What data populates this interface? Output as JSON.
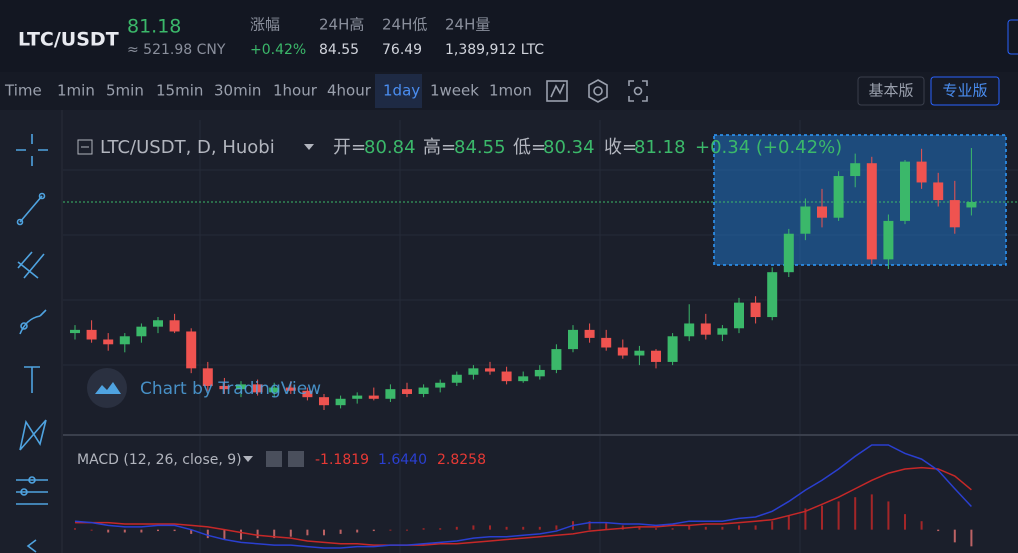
{
  "header": {
    "pair": "LTC/USDT",
    "price": "81.18",
    "cny": "≈ 521.98 CNY",
    "change_label": "涨幅",
    "change": "+0.42%",
    "high_label": "24H高",
    "high": "84.55",
    "low_label": "24H低",
    "low": "76.49",
    "volume_label": "24H量",
    "volume": "1,389,912 LTC"
  },
  "toolbar": {
    "intervals": [
      "Time",
      "1min",
      "5min",
      "15min",
      "30min",
      "1hour",
      "4hour",
      "1day",
      "1week",
      "1mon"
    ],
    "buttons": [
      "基本版",
      "专业版"
    ]
  },
  "chart": {
    "legend": {
      "symbol": "LTC/USDT, D, Huobi",
      "open_label": "开=",
      "open": "80.84",
      "high_label": "高=",
      "high": "84.55",
      "low_label": "低=",
      "low": "80.34",
      "close_label": "收=",
      "close": "81.18",
      "change": "+0.34 (+0.42%)"
    },
    "watermark": "Chart by TradingView",
    "candles": [
      [
        73.0,
        73.5,
        72.6,
        73.2
      ],
      [
        73.2,
        73.8,
        72.4,
        72.6
      ],
      [
        72.6,
        73.0,
        71.9,
        72.3
      ],
      [
        72.3,
        73.0,
        71.8,
        72.8
      ],
      [
        72.8,
        73.6,
        72.4,
        73.4
      ],
      [
        73.4,
        74.0,
        73.0,
        73.8
      ],
      [
        73.8,
        74.2,
        73.0,
        73.1
      ],
      [
        73.1,
        73.3,
        70.5,
        70.8
      ],
      [
        70.8,
        71.2,
        69.4,
        69.7
      ],
      [
        69.7,
        70.2,
        69.2,
        69.5
      ],
      [
        69.5,
        70.0,
        69.0,
        69.8
      ],
      [
        69.8,
        70.1,
        69.1,
        69.3
      ],
      [
        69.3,
        69.9,
        69.0,
        69.6
      ],
      [
        69.6,
        70.0,
        69.2,
        69.4
      ],
      [
        69.4,
        69.6,
        68.8,
        69.0
      ],
      [
        69.0,
        69.2,
        68.2,
        68.5
      ],
      [
        68.5,
        69.1,
        68.3,
        68.9
      ],
      [
        68.9,
        69.3,
        68.6,
        69.1
      ],
      [
        69.1,
        69.6,
        68.8,
        68.9
      ],
      [
        68.9,
        69.8,
        68.7,
        69.5
      ],
      [
        69.5,
        69.9,
        69.0,
        69.2
      ],
      [
        69.2,
        69.8,
        69.0,
        69.6
      ],
      [
        69.6,
        70.1,
        69.3,
        69.9
      ],
      [
        69.9,
        70.6,
        69.7,
        70.4
      ],
      [
        70.4,
        71.0,
        70.1,
        70.8
      ],
      [
        70.8,
        71.2,
        70.4,
        70.6
      ],
      [
        70.6,
        70.9,
        69.8,
        70.0
      ],
      [
        70.0,
        70.6,
        69.9,
        70.3
      ],
      [
        70.3,
        71.0,
        70.1,
        70.7
      ],
      [
        70.7,
        72.3,
        70.5,
        72.0
      ],
      [
        72.0,
        73.5,
        71.8,
        73.2
      ],
      [
        73.2,
        73.6,
        72.4,
        72.7
      ],
      [
        72.7,
        73.2,
        71.9,
        72.1
      ],
      [
        72.1,
        72.6,
        71.4,
        71.6
      ],
      [
        71.6,
        72.2,
        71.0,
        71.9
      ],
      [
        71.9,
        72.0,
        70.8,
        71.2
      ],
      [
        71.2,
        73.0,
        71.0,
        72.8
      ],
      [
        72.8,
        74.8,
        72.5,
        73.6
      ],
      [
        73.6,
        74.2,
        72.6,
        72.9
      ],
      [
        72.9,
        73.5,
        72.5,
        73.3
      ],
      [
        73.3,
        75.2,
        73.0,
        74.9
      ],
      [
        74.9,
        75.3,
        73.6,
        74.0
      ],
      [
        74.0,
        77.1,
        73.8,
        76.8
      ],
      [
        76.8,
        79.5,
        76.5,
        79.2
      ],
      [
        79.2,
        81.4,
        78.8,
        80.9
      ],
      [
        80.9,
        82.0,
        79.6,
        80.2
      ],
      [
        80.2,
        83.1,
        80.0,
        82.8
      ],
      [
        82.8,
        84.2,
        82.1,
        83.6
      ],
      [
        83.6,
        84.0,
        77.3,
        77.6
      ],
      [
        77.6,
        80.4,
        77.0,
        80.0
      ],
      [
        80.0,
        83.8,
        79.8,
        83.7
      ],
      [
        83.7,
        84.5,
        82.0,
        82.4
      ],
      [
        82.4,
        83.0,
        80.9,
        81.3
      ],
      [
        81.3,
        82.5,
        79.2,
        79.6
      ],
      [
        80.84,
        84.55,
        80.34,
        81.18
      ]
    ],
    "macd": {
      "label": "MACD (12, 26, close, 9)",
      "histogram_value": "-1.1819",
      "macd_value": "1.6440",
      "signal_value": "2.8258",
      "macd_line": [
        0.6,
        0.5,
        0.3,
        0.2,
        0.2,
        0.3,
        0.3,
        0.0,
        -0.4,
        -0.7,
        -0.9,
        -1.0,
        -1.1,
        -1.1,
        -1.2,
        -1.3,
        -1.3,
        -1.2,
        -1.2,
        -1.1,
        -1.1,
        -1.0,
        -0.9,
        -0.8,
        -0.6,
        -0.5,
        -0.5,
        -0.4,
        -0.3,
        -0.1,
        0.3,
        0.5,
        0.5,
        0.4,
        0.4,
        0.3,
        0.4,
        0.6,
        0.6,
        0.6,
        0.8,
        0.9,
        1.3,
        2.0,
        2.8,
        3.5,
        4.3,
        5.2,
        6.0,
        6.0,
        5.4,
        5.0,
        4.2,
        2.9,
        1.644
      ],
      "signal_line": [
        0.5,
        0.5,
        0.5,
        0.4,
        0.4,
        0.4,
        0.4,
        0.3,
        0.2,
        0.0,
        -0.2,
        -0.4,
        -0.5,
        -0.6,
        -0.8,
        -0.9,
        -1.0,
        -1.0,
        -1.1,
        -1.1,
        -1.1,
        -1.1,
        -1.0,
        -1.0,
        -0.9,
        -0.8,
        -0.7,
        -0.6,
        -0.5,
        -0.4,
        -0.3,
        -0.1,
        0.0,
        0.1,
        0.2,
        0.2,
        0.3,
        0.3,
        0.4,
        0.4,
        0.5,
        0.6,
        0.7,
        1.0,
        1.3,
        1.8,
        2.3,
        2.9,
        3.5,
        4.0,
        4.3,
        4.4,
        4.3,
        3.8,
        2.8258
      ],
      "histogram": [
        0.1,
        0.0,
        -0.2,
        -0.2,
        -0.2,
        -0.1,
        -0.1,
        -0.3,
        -0.6,
        -0.7,
        -0.7,
        -0.6,
        -0.6,
        -0.5,
        -0.4,
        -0.4,
        -0.3,
        -0.2,
        -0.1,
        0.0,
        0.0,
        0.1,
        0.1,
        0.2,
        0.3,
        0.3,
        0.2,
        0.2,
        0.2,
        0.3,
        0.6,
        0.6,
        0.5,
        0.3,
        0.2,
        0.1,
        0.1,
        0.3,
        0.2,
        0.2,
        0.3,
        0.3,
        0.6,
        1.0,
        1.5,
        1.7,
        2.0,
        2.3,
        2.5,
        2.0,
        1.1,
        0.6,
        -0.1,
        -0.9,
        -1.1819
      ]
    }
  }
}
